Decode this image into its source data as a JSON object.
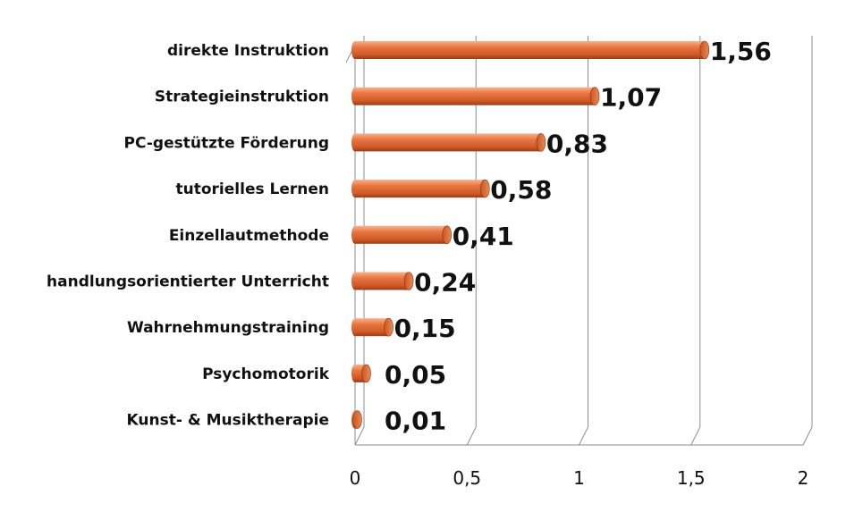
{
  "chart_data": {
    "type": "bar",
    "orientation": "horizontal",
    "style": "3d-cylinder",
    "categories": [
      "direkte Instruktion",
      "Strategieinstruktion",
      "PC-gestützte Förderung",
      "tutorielles Lernen",
      "Einzellautmethode",
      "handlungsorientierter Unterricht",
      "Wahrnehmungstraining",
      "Psychomotorik",
      "Kunst- & Musiktherapie"
    ],
    "values": [
      1.56,
      1.07,
      0.83,
      0.58,
      0.41,
      0.24,
      0.15,
      0.05,
      0.01
    ],
    "value_labels": [
      "1,56",
      "1,07",
      "0,83",
      "0,58",
      "0,41",
      "0,24",
      "0,15",
      "0,05",
      "0,01"
    ],
    "xlim": [
      0,
      2
    ],
    "x_ticks": [
      0,
      0.5,
      1,
      1.5,
      2
    ],
    "x_tick_labels": [
      "0",
      "0,5",
      "1",
      "1,5",
      "2"
    ],
    "grid": true,
    "legend": "none",
    "title": "",
    "xlabel": "",
    "ylabel": ""
  },
  "colors": {
    "bar": "#e06a38",
    "bar_dark": "#9a3d17",
    "bar_light": "#f6a47d",
    "grid": "#8c8c8c"
  }
}
